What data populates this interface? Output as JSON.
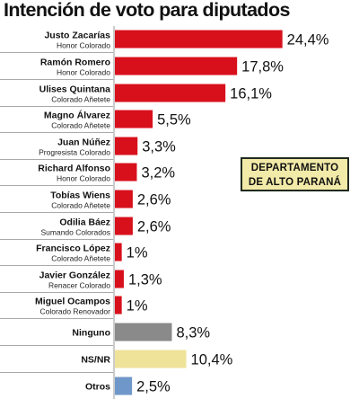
{
  "title": "Intención de voto para diputados",
  "department_box": {
    "line1": "DEPARTAMENTO",
    "line2": "DE ALTO PARANÁ"
  },
  "colors": {
    "candidates": "#d8101c",
    "ninguno": "#8a8a8a",
    "ns_nr": "#efe39a",
    "otros": "#6f97c9",
    "separator": "#aaaaaa"
  },
  "chart_data": {
    "type": "bar",
    "orientation": "horizontal",
    "title": "Intención de voto para diputados",
    "categories": [
      {
        "name": "Justo Zacarías",
        "party": "Honor Colorado"
      },
      {
        "name": "Ramón Romero",
        "party": "Honor Colorado"
      },
      {
        "name": "Ulises Quintana",
        "party": "Colorado Añetete"
      },
      {
        "name": "Magno Álvarez",
        "party": "Colorado Añetete"
      },
      {
        "name": "Juan Núñez",
        "party": "Progresista Colorado"
      },
      {
        "name": "Richard Alfonso",
        "party": "Honor Colorado"
      },
      {
        "name": "Tobías Wiens",
        "party": "Colorado Añetete"
      },
      {
        "name": "Odilia Báez",
        "party": "Sumando Colorados"
      },
      {
        "name": "Francisco López",
        "party": "Colorado Añetete"
      },
      {
        "name": "Javier González",
        "party": "Renacer Colorado"
      },
      {
        "name": "Miguel Ocampos",
        "party": "Colorado Renovador"
      },
      {
        "name": "Ninguno",
        "party": ""
      },
      {
        "name": "NS/NR",
        "party": ""
      },
      {
        "name": "Otros",
        "party": ""
      }
    ],
    "values": [
      24.4,
      17.8,
      16.1,
      5.5,
      3.3,
      3.2,
      2.6,
      2.6,
      1,
      1.3,
      1,
      8.3,
      10.4,
      2.5
    ],
    "value_labels": [
      "24,4%",
      "17,8%",
      "16,1%",
      "5,5%",
      "3,3%",
      "3,2%",
      "2,6%",
      "2,6%",
      "1%",
      "1,3%",
      "1%",
      "8,3%",
      "10,4%",
      "2,5%"
    ],
    "bar_colors": [
      "candidates",
      "candidates",
      "candidates",
      "candidates",
      "candidates",
      "candidates",
      "candidates",
      "candidates",
      "candidates",
      "candidates",
      "candidates",
      "ninguno",
      "ns_nr",
      "otros"
    ],
    "unit": "%"
  }
}
